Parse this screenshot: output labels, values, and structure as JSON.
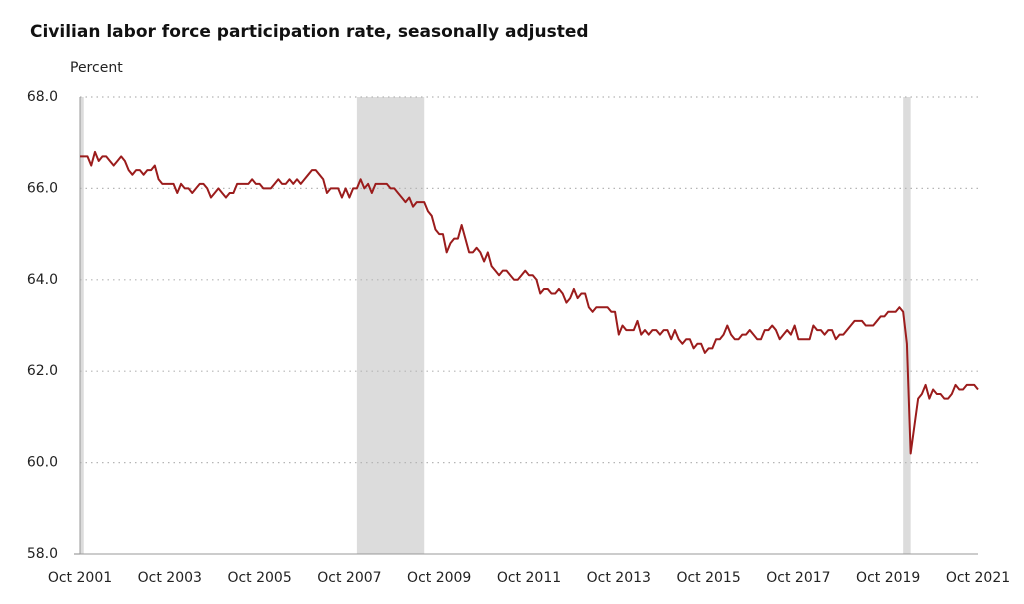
{
  "chart_data": {
    "type": "line",
    "title": "Civilian labor force participation rate, seasonally adjusted",
    "y_axis_label": "Percent",
    "categories": [
      "Oct 2001",
      null,
      null,
      null,
      null,
      null,
      null,
      null,
      null,
      null,
      null,
      null,
      null,
      null,
      null,
      null,
      null,
      null,
      null,
      null,
      null,
      null,
      null,
      null,
      "Oct 2003",
      null,
      null,
      null,
      null,
      null,
      null,
      null,
      null,
      null,
      null,
      null,
      null,
      null,
      null,
      null,
      null,
      null,
      null,
      null,
      null,
      null,
      null,
      null,
      "Oct 2005",
      null,
      null,
      null,
      null,
      null,
      null,
      null,
      null,
      null,
      null,
      null,
      null,
      null,
      null,
      null,
      null,
      null,
      null,
      null,
      null,
      null,
      null,
      null,
      "Oct 2007",
      null,
      null,
      null,
      null,
      null,
      null,
      null,
      null,
      null,
      null,
      null,
      null,
      null,
      null,
      null,
      null,
      null,
      null,
      null,
      null,
      null,
      null,
      null,
      "Oct 2009",
      null,
      null,
      null,
      null,
      null,
      null,
      null,
      null,
      null,
      null,
      null,
      null,
      null,
      null,
      null,
      null,
      null,
      null,
      null,
      null,
      null,
      null,
      null,
      "Oct 2011",
      null,
      null,
      null,
      null,
      null,
      null,
      null,
      null,
      null,
      null,
      null,
      null,
      null,
      null,
      null,
      null,
      null,
      null,
      null,
      null,
      null,
      null,
      null,
      "Oct 2013",
      null,
      null,
      null,
      null,
      null,
      null,
      null,
      null,
      null,
      null,
      null,
      null,
      null,
      null,
      null,
      null,
      null,
      null,
      null,
      null,
      null,
      null,
      null,
      "Oct 2015",
      null,
      null,
      null,
      null,
      null,
      null,
      null,
      null,
      null,
      null,
      null,
      null,
      null,
      null,
      null,
      null,
      null,
      null,
      null,
      null,
      null,
      null,
      null,
      "Oct 2017",
      null,
      null,
      null,
      null,
      null,
      null,
      null,
      null,
      null,
      null,
      null,
      null,
      null,
      null,
      null,
      null,
      null,
      null,
      null,
      null,
      null,
      null,
      null,
      "Oct 2019",
      null,
      null,
      null,
      null,
      null,
      null,
      null,
      null,
      null,
      null,
      null,
      null,
      null,
      null,
      null,
      null,
      null,
      null,
      null,
      null,
      null,
      null,
      null,
      "Oct 2021"
    ],
    "series": [
      {
        "name": "Civilian labor force participation rate",
        "color": "#9b1c1c",
        "values": [
          66.7,
          66.7,
          66.7,
          66.5,
          66.8,
          66.6,
          66.7,
          66.7,
          66.6,
          66.5,
          66.6,
          66.7,
          66.6,
          66.4,
          66.3,
          66.4,
          66.4,
          66.3,
          66.4,
          66.4,
          66.5,
          66.2,
          66.1,
          66.1,
          66.1,
          66.1,
          65.9,
          66.1,
          66.0,
          66.0,
          65.9,
          66.0,
          66.1,
          66.1,
          66.0,
          65.8,
          65.9,
          66.0,
          65.9,
          65.8,
          65.9,
          65.9,
          66.1,
          66.1,
          66.1,
          66.1,
          66.2,
          66.1,
          66.1,
          66.0,
          66.0,
          66.0,
          66.1,
          66.2,
          66.1,
          66.1,
          66.2,
          66.1,
          66.2,
          66.1,
          66.2,
          66.3,
          66.4,
          66.4,
          66.3,
          66.2,
          65.9,
          66.0,
          66.0,
          66.0,
          65.8,
          66.0,
          65.8,
          66.0,
          66.0,
          66.2,
          66.0,
          66.1,
          65.9,
          66.1,
          66.1,
          66.1,
          66.1,
          66.0,
          66.0,
          65.9,
          65.8,
          65.7,
          65.8,
          65.6,
          65.7,
          65.7,
          65.7,
          65.5,
          65.4,
          65.1,
          65.0,
          65.0,
          64.6,
          64.8,
          64.9,
          64.9,
          65.2,
          64.9,
          64.6,
          64.6,
          64.7,
          64.6,
          64.4,
          64.6,
          64.3,
          64.2,
          64.1,
          64.2,
          64.2,
          64.1,
          64.0,
          64.0,
          64.1,
          64.2,
          64.1,
          64.1,
          64.0,
          63.7,
          63.8,
          63.8,
          63.7,
          63.7,
          63.8,
          63.7,
          63.5,
          63.6,
          63.8,
          63.6,
          63.7,
          63.7,
          63.4,
          63.3,
          63.4,
          63.4,
          63.4,
          63.4,
          63.3,
          63.3,
          62.8,
          63.0,
          62.9,
          62.9,
          62.9,
          63.1,
          62.8,
          62.9,
          62.8,
          62.9,
          62.9,
          62.8,
          62.9,
          62.9,
          62.7,
          62.9,
          62.7,
          62.6,
          62.7,
          62.7,
          62.5,
          62.6,
          62.6,
          62.4,
          62.5,
          62.5,
          62.7,
          62.7,
          62.8,
          63.0,
          62.8,
          62.7,
          62.7,
          62.8,
          62.8,
          62.9,
          62.8,
          62.7,
          62.7,
          62.9,
          62.9,
          63.0,
          62.9,
          62.7,
          62.8,
          62.9,
          62.8,
          63.0,
          62.7,
          62.7,
          62.7,
          62.7,
          63.0,
          62.9,
          62.9,
          62.8,
          62.9,
          62.9,
          62.7,
          62.8,
          62.8,
          62.9,
          63.0,
          63.1,
          63.1,
          63.1,
          63.0,
          63.0,
          63.0,
          63.1,
          63.2,
          63.2,
          63.3,
          63.3,
          63.3,
          63.4,
          63.3,
          62.6,
          60.2,
          60.8,
          61.4,
          61.5,
          61.7,
          61.4,
          61.6,
          61.5,
          61.5,
          61.4,
          61.4,
          61.5,
          61.7,
          61.6,
          61.6,
          61.7,
          61.7,
          61.7,
          61.6
        ]
      }
    ],
    "ylim": [
      58,
      68
    ],
    "yticks": [
      {
        "value": 58,
        "label": "58.0"
      },
      {
        "value": 60,
        "label": "60.0"
      },
      {
        "value": 62,
        "label": "62.0"
      },
      {
        "value": 64,
        "label": "64.0"
      },
      {
        "value": 66,
        "label": "66.0"
      },
      {
        "value": 68,
        "label": "68.0"
      }
    ],
    "grid": true,
    "recessions": [
      {
        "start": "2001-03",
        "end": "2001-11"
      },
      {
        "start": "2007-12",
        "end": "2009-06"
      },
      {
        "start": "2020-02",
        "end": "2020-04"
      }
    ],
    "recession_color": "#dcdcdc"
  }
}
